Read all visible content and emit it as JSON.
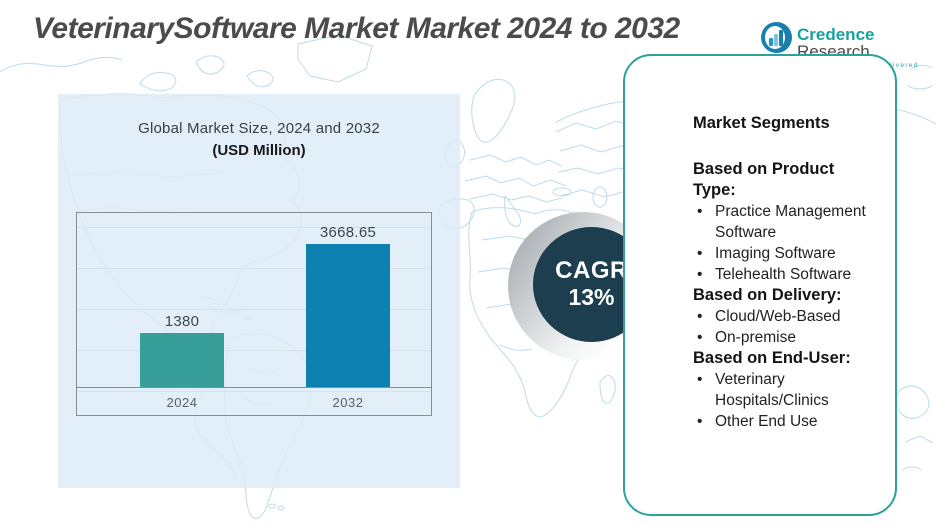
{
  "header": {
    "title": "VeterinarySoftware Market Market 2024 to 2032",
    "logo": {
      "brand_primary": "Credence",
      "brand_secondary": " Research",
      "tagline": "Actionable Insights Delivered"
    }
  },
  "chart_data": {
    "type": "bar",
    "title": "Global Market Size,  2024 and 2032",
    "subtitle": "(USD Million)",
    "categories": [
      "2024",
      "2032"
    ],
    "values": [
      1380,
      3668.65
    ],
    "value_labels": [
      "1380",
      "3668.65"
    ],
    "bar_colors": [
      "#389e99",
      "#0b80b1"
    ],
    "ylabel": "",
    "xlabel": "",
    "ylim": [
      0,
      4000
    ],
    "grid": true,
    "legend": "none"
  },
  "cagr_badge": {
    "label": "CAGR",
    "value": "13%"
  },
  "segments_panel": {
    "heading": "Market Segments",
    "groups": [
      {
        "heading": "Based on Product Type:",
        "items": [
          "Practice Management Software",
          "Imaging Software",
          "Telehealth Software"
        ]
      },
      {
        "heading": "Based on Delivery:",
        "items": [
          "Cloud/Web-Based",
          "On-premise"
        ]
      },
      {
        "heading": "Based on End-User:",
        "items": [
          "Veterinary Hospitals/Clinics",
          "Other End Use"
        ]
      }
    ]
  },
  "colors": {
    "accent_teal": "#2ba39b",
    "bar_2024": "#389e99",
    "bar_2032": "#0b80b1",
    "badge_navy": "#1d3e4e",
    "panel_blue": "#e3eef7",
    "map_stroke": "#bedaea",
    "title_gray": "#4b4b4d"
  }
}
